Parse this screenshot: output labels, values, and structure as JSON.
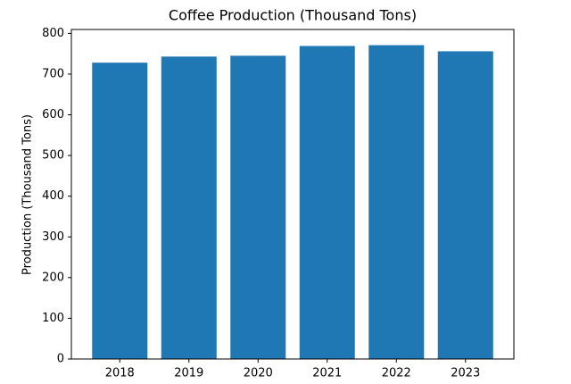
{
  "chart_data": {
    "type": "bar",
    "title": "Coffee Production (Thousand Tons)",
    "y_label": "Production (Thousand Tons)",
    "categories": [
      "2018",
      "2019",
      "2020",
      "2021",
      "2022",
      "2023"
    ],
    "values": [
      728,
      743,
      745,
      769,
      771,
      756
    ],
    "color": "#1f77b4",
    "ylim": [
      0,
      809.6
    ],
    "yticks": [
      0,
      100,
      200,
      300,
      400,
      500,
      600,
      700,
      800
    ]
  }
}
